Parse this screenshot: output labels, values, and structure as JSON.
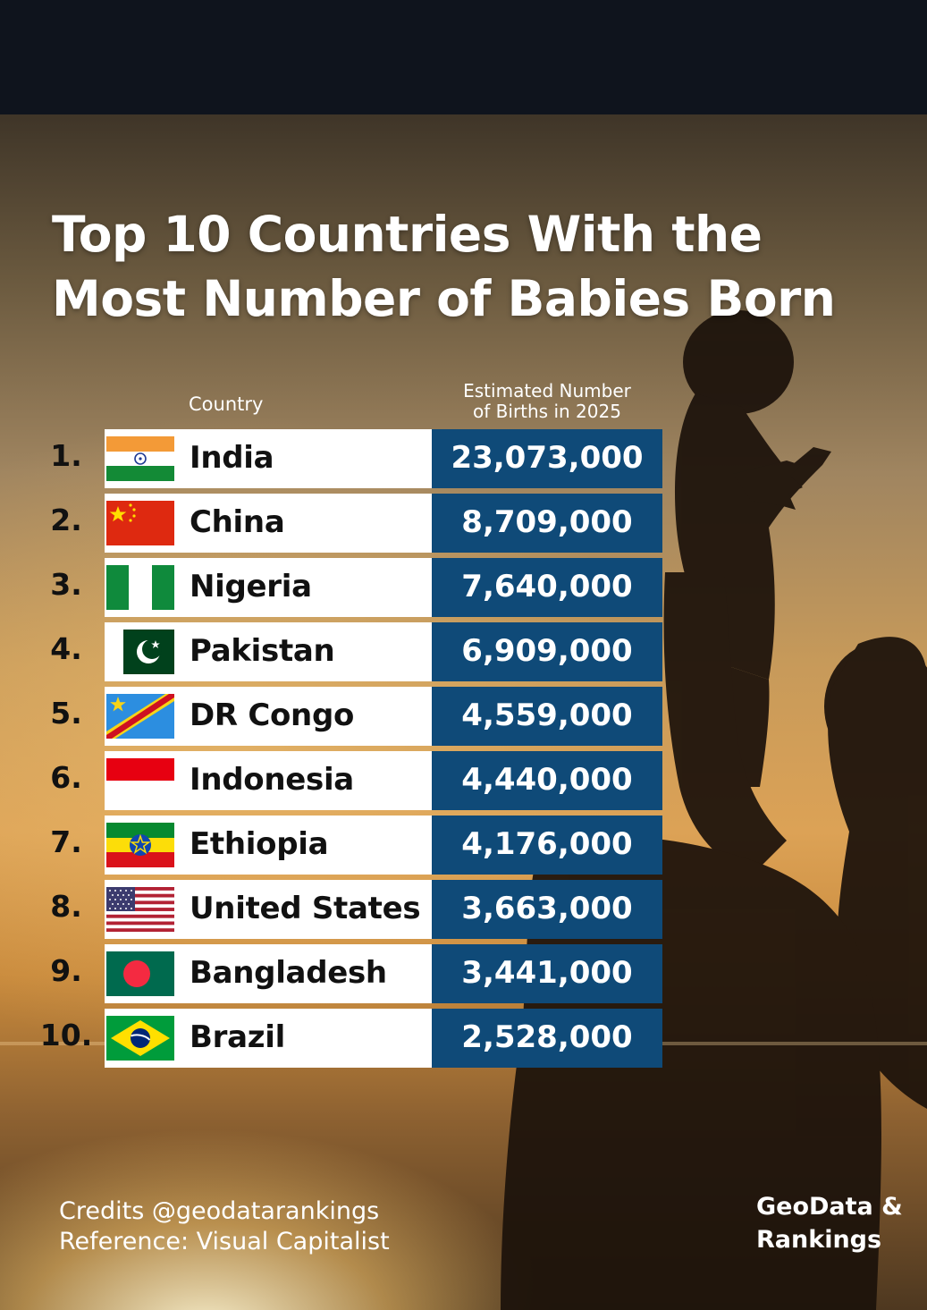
{
  "title": "Top 10 Countries With the Most Number of Babies Born",
  "columns": {
    "country": "Country",
    "births_line1": "Estimated Number",
    "births_line2": "of Births in 2025"
  },
  "rows": [
    {
      "rank": "1.",
      "country": "India",
      "value": "23,073,000",
      "flag": "india-flag-icon"
    },
    {
      "rank": "2.",
      "country": "China",
      "value": "8,709,000",
      "flag": "china-flag-icon"
    },
    {
      "rank": "3.",
      "country": "Nigeria",
      "value": "7,640,000",
      "flag": "nigeria-flag-icon"
    },
    {
      "rank": "4.",
      "country": "Pakistan",
      "value": "6,909,000",
      "flag": "pakistan-flag-icon"
    },
    {
      "rank": "5.",
      "country": "DR Congo",
      "value": "4,559,000",
      "flag": "dr-congo-flag-icon"
    },
    {
      "rank": "6.",
      "country": "Indonesia",
      "value": "4,440,000",
      "flag": "indonesia-flag-icon"
    },
    {
      "rank": "7.",
      "country": "Ethiopia",
      "value": "4,176,000",
      "flag": "ethiopia-flag-icon"
    },
    {
      "rank": "8.",
      "country": "United States",
      "value": "3,663,000",
      "flag": "united-states-flag-icon"
    },
    {
      "rank": "9.",
      "country": "Bangladesh",
      "value": "3,441,000",
      "flag": "bangladesh-flag-icon"
    },
    {
      "rank": "10.",
      "country": "Brazil",
      "value": "2,528,000",
      "flag": "brazil-flag-icon"
    }
  ],
  "credits": {
    "line1": "Credits @geodatarankings",
    "line2": "Reference: Visual Capitalist"
  },
  "brand": {
    "line1": "GeoData &",
    "line2": "Rankings"
  },
  "colors": {
    "value_box": "#0f4a78",
    "row_bg": "#ffffff",
    "header_band": "#0f141d"
  },
  "chart_data": {
    "type": "table",
    "title": "Top 10 Countries With the Most Number of Babies Born",
    "columns": [
      "Country",
      "Estimated Number of Births in 2025"
    ],
    "categories": [
      "India",
      "China",
      "Nigeria",
      "Pakistan",
      "DR Congo",
      "Indonesia",
      "Ethiopia",
      "United States",
      "Bangladesh",
      "Brazil"
    ],
    "values": [
      23073000,
      8709000,
      7640000,
      6909000,
      4559000,
      4440000,
      4176000,
      3663000,
      3441000,
      2528000
    ]
  }
}
